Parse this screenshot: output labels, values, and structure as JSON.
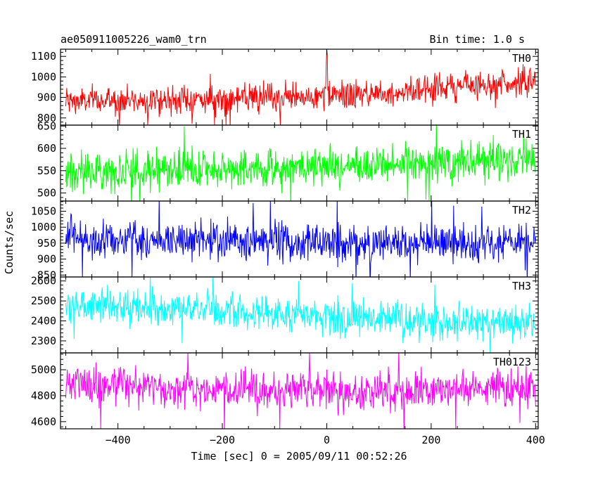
{
  "header": {
    "title": "ae050911005226_wam0_trn",
    "bin_time": "Bin time: 1.0 s"
  },
  "axes": {
    "ylabel": "Counts/sec",
    "xlabel": "Time [sec] 0 = 2005/09/11 00:52:26"
  },
  "chart_data": {
    "type": "line",
    "x_range": [
      -510,
      405
    ],
    "x_ticks": [
      -400,
      -200,
      0,
      200,
      400
    ],
    "x_tick_labels": [
      "−400",
      "−200",
      "0",
      "200",
      "400"
    ],
    "x_start": -500,
    "x_end": 400,
    "x_step": 1,
    "panels": [
      {
        "name": "TH0",
        "color": "#ff0000",
        "ylim": [
          765,
          1135
        ],
        "yticks": [
          800,
          900,
          1000,
          1100
        ],
        "trend": [
          880,
          885,
          890,
          890,
          895,
          905,
          920,
          945,
          965,
          975
        ],
        "noise": 35,
        "noise_sigma": 1.3,
        "spikes": [
          [
            0,
            1135
          ],
          [
            1,
            1110
          ],
          [
            -1,
            1060
          ]
        ]
      },
      {
        "name": "TH1",
        "color": "#00ff00",
        "ylim": [
          482,
          652
        ],
        "yticks": [
          500,
          550,
          600,
          650
        ],
        "trend": [
          545,
          550,
          552,
          553,
          555,
          558,
          563,
          568,
          572,
          578
        ],
        "noise": 22,
        "noise_sigma": 1.4
      },
      {
        "name": "TH2",
        "color": "#0000ff",
        "ylim": [
          844,
          1082
        ],
        "yticks": [
          850,
          900,
          950,
          1000,
          1050
        ],
        "trend": [
          965,
          962,
          960,
          958,
          955,
          952,
          948,
          948,
          945,
          945
        ],
        "noise": 32,
        "noise_sigma": 1.4
      },
      {
        "name": "TH3",
        "color": "#00ffff",
        "ylim": [
          2240,
          2620
        ],
        "yticks": [
          2300,
          2400,
          2500,
          2600
        ],
        "trend": [
          2480,
          2470,
          2460,
          2450,
          2440,
          2420,
          2410,
          2400,
          2395,
          2390
        ],
        "noise": 45,
        "noise_sigma": 1.4
      },
      {
        "name": "TH0123",
        "color": "#ff00ff",
        "ylim": [
          4545,
          5130
        ],
        "yticks": [
          4600,
          4800,
          5000
        ],
        "trend": [
          4900,
          4880,
          4860,
          4850,
          4830,
          4830,
          4840,
          4840,
          4860,
          4880
        ],
        "noise": 75,
        "noise_sigma": 1.4
      }
    ]
  }
}
